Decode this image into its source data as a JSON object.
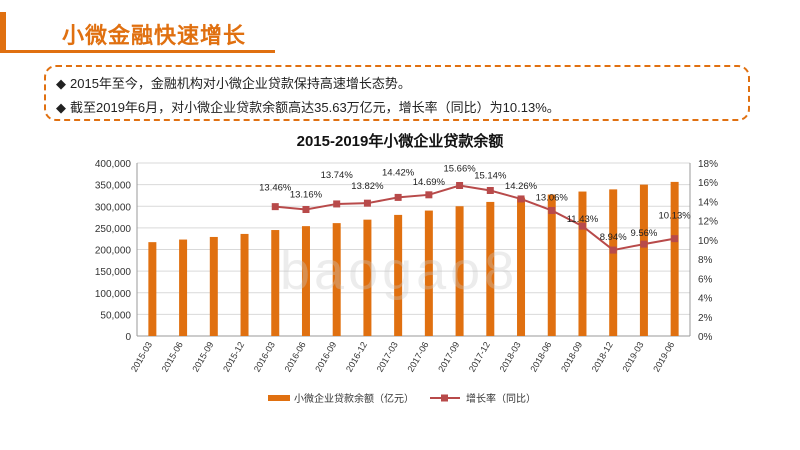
{
  "header": {
    "title": "小微金融快速增长"
  },
  "summary": {
    "bullet_symbol": "◆",
    "line1": "2015年至今，金融机构对小微企业贷款保持高速增长态势。",
    "line2": "截至2019年6月，对小微企业贷款余额高达35.63万亿元，增长率（同比）为10.13%。"
  },
  "watermark": "baogao8",
  "chart_data": {
    "type": "bar",
    "title": "2015-2019年小微企业贷款余额",
    "categories": [
      "2015-03",
      "2015-06",
      "2015-09",
      "2015-12",
      "2016-03",
      "2016-06",
      "2016-09",
      "2016-12",
      "2017-03",
      "2017-06",
      "2017-09",
      "2017-12",
      "2018-03",
      "2018-06",
      "2018-09",
      "2018-12",
      "2019-03",
      "2019-06"
    ],
    "series": [
      {
        "name": "小微企业贷款余额（亿元）",
        "type": "bar",
        "axis": "left",
        "color": "#e07010",
        "values": [
          217000,
          223000,
          229000,
          236000,
          245000,
          254000,
          261000,
          269000,
          280000,
          290000,
          300000,
          310000,
          320000,
          327000,
          334000,
          339000,
          350000,
          356300
        ]
      },
      {
        "name": "增长率（同比）",
        "type": "line",
        "axis": "right",
        "color": "#b84a4a",
        "values": [
          null,
          null,
          null,
          null,
          13.46,
          13.16,
          13.74,
          13.82,
          14.42,
          14.69,
          15.66,
          15.14,
          14.26,
          13.06,
          11.43,
          8.94,
          9.56,
          10.13
        ],
        "labels": [
          "",
          "",
          "",
          "",
          "13.46%",
          "13.16%",
          "13.74%",
          "13.82%",
          "14.42%",
          "14.69%",
          "15.66%",
          "15.14%",
          "14.26%",
          "13.06%",
          "11.43%",
          "8.94%",
          "9.56%",
          "10.13%"
        ]
      }
    ],
    "y_left": {
      "min": 0,
      "max": 400000,
      "ticks": [
        "0",
        "50,000",
        "100,000",
        "150,000",
        "200,000",
        "250,000",
        "300,000",
        "350,000",
        "400,000"
      ]
    },
    "y_right": {
      "min": 0,
      "max": 18,
      "ticks": [
        "0%",
        "2%",
        "4%",
        "6%",
        "8%",
        "10%",
        "12%",
        "14%",
        "16%",
        "18%"
      ]
    },
    "grid": true,
    "legend_position": "bottom"
  }
}
